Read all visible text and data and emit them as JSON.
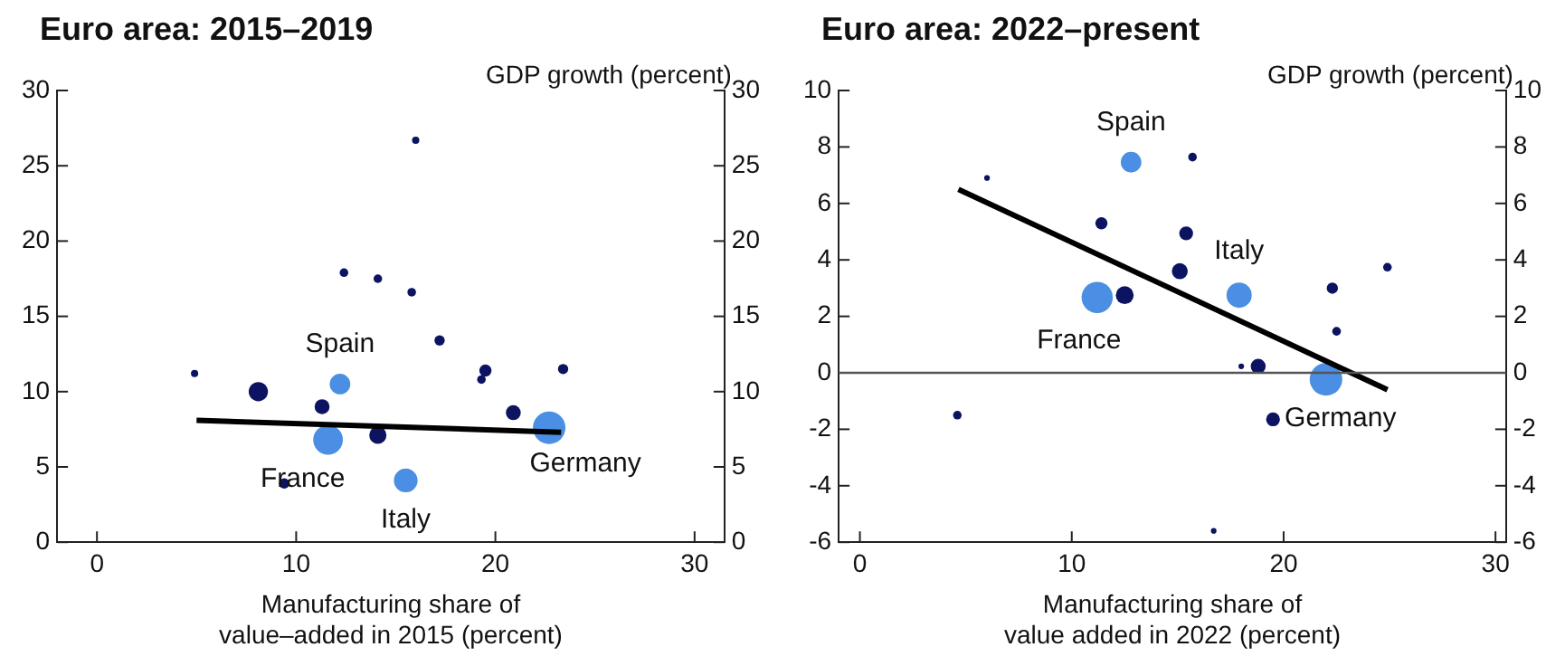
{
  "chart_data": [
    {
      "type": "bubble",
      "title": "Euro area: 2015–2019",
      "y2label": "GDP growth (percent)",
      "xlabel": "Manufacturing share of\nvalue–added in 2015 (percent)",
      "xlim": [
        -2,
        31.5
      ],
      "xticks": [
        0,
        10,
        20,
        30
      ],
      "ylim": [
        0,
        30
      ],
      "yticks": [
        0,
        5,
        10,
        15,
        20,
        25,
        30
      ],
      "y2lim": [
        0,
        30
      ],
      "y2ticks": [
        0,
        5,
        10,
        15,
        20,
        25,
        30
      ],
      "grid": false,
      "legend": false,
      "series": [
        {
          "marker": "circle",
          "color": "#4a8fe3",
          "x": [
            12.2,
            11.6,
            15.5,
            22.7
          ],
          "values": [
            10.5,
            6.8,
            4.1,
            7.6
          ],
          "sizes": [
            0.4,
            0.83,
            0.53,
            1
          ]
        },
        {
          "marker": "circle",
          "color": "#0c1461",
          "x": [
            4.9,
            8.1,
            11.3,
            14.1,
            9.4,
            16.0,
            12.4,
            14.1,
            15.8,
            17.2,
            19.5,
            19.3,
            23.4,
            20.9
          ],
          "values": [
            11.2,
            10.0,
            9.0,
            7.1,
            3.9,
            26.7,
            17.9,
            17.5,
            16.6,
            13.4,
            11.4,
            10.8,
            11.5,
            8.6
          ],
          "sizes": [
            0.05,
            0.35,
            0.21,
            0.28,
            0.1,
            0.05,
            0.07,
            0.07,
            0.07,
            0.1,
            0.14,
            0.07,
            0.1,
            0.21
          ]
        },
        {
          "type": "line",
          "color": "#000000",
          "x": [
            5.0,
            23.3
          ],
          "values": [
            8.1,
            7.3
          ],
          "marker": "none"
        }
      ],
      "annotations": [
        {
          "text": "Spain",
          "x": 12.2,
          "y": 10.5
        },
        {
          "text": "France",
          "x": 11.6,
          "y": 6.8
        },
        {
          "text": "Italy",
          "x": 15.5,
          "y": 4.1
        },
        {
          "text": "Germany",
          "x": 22.7,
          "y": 7.6
        }
      ]
    },
    {
      "type": "bubble",
      "title": "Euro area: 2022–present",
      "y2label": "GDP growth (percent)",
      "xlabel": "Manufacturing share of\nvalue added in 2022 (percent)",
      "xlim": [
        -1,
        30.5
      ],
      "xticks": [
        0,
        10,
        20,
        30
      ],
      "ylim": [
        -6,
        10
      ],
      "yticks": [
        -6,
        -4,
        -2,
        0,
        2,
        4,
        6,
        8,
        10
      ],
      "y2lim": [
        -6,
        10
      ],
      "y2ticks": [
        -6,
        -4,
        -2,
        0,
        2,
        4,
        6,
        8,
        10
      ],
      "grid": false,
      "legend": false,
      "series": [
        {
          "marker": "circle",
          "color": "#4a8fe3",
          "x": [
            12.8,
            17.9,
            11.2,
            22.0
          ],
          "values": [
            7.46,
            2.75,
            2.67,
            -0.23
          ],
          "sizes": [
            0.4,
            0.6,
            0.92,
            1
          ]
        },
        {
          "marker": "circle",
          "color": "#0c1461",
          "x": [
            6.0,
            15.7,
            11.4,
            15.4,
            15.1,
            12.5,
            22.3,
            24.9,
            22.5,
            18.0,
            18.8,
            19.5,
            4.6,
            16.7
          ],
          "values": [
            6.9,
            7.64,
            5.3,
            4.94,
            3.6,
            2.75,
            3.0,
            3.74,
            1.47,
            0.23,
            0.23,
            -1.65,
            -1.5,
            -5.6
          ],
          "sizes": [
            0.03,
            0.07,
            0.14,
            0.18,
            0.24,
            0.3,
            0.12,
            0.07,
            0.07,
            0.03,
            0.21,
            0.18,
            0.07,
            0.03
          ]
        },
        {
          "type": "line",
          "color": "#000000",
          "x": [
            4.65,
            24.9
          ],
          "values": [
            6.5,
            -0.6
          ],
          "marker": "none"
        }
      ],
      "ref_lines": [
        {
          "axis": "y",
          "value": 0,
          "color": "#555555"
        }
      ],
      "annotations": [
        {
          "text": "Spain",
          "x": 12.8,
          "y": 7.46
        },
        {
          "text": "Italy",
          "x": 17.9,
          "y": 2.75
        },
        {
          "text": "France",
          "x": 11.2,
          "y": 2.67
        },
        {
          "text": "Germany",
          "x": 22.0,
          "y": -0.23
        }
      ]
    }
  ]
}
